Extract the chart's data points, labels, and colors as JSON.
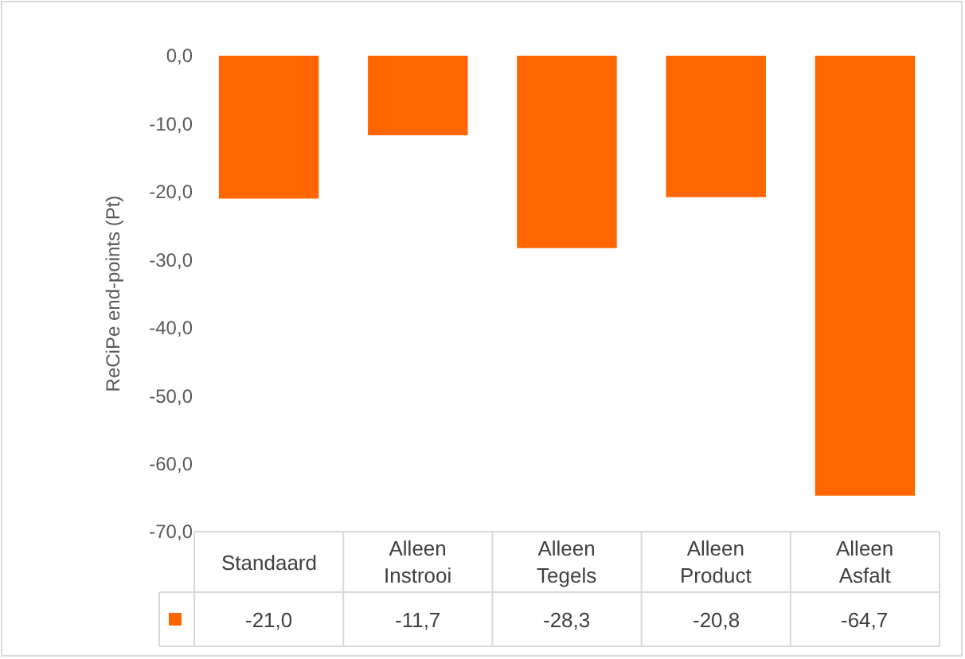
{
  "chart_data": {
    "type": "bar",
    "ylabel": "ReCiPe end-points (Pt)",
    "categories": [
      "Standaard",
      "Alleen Instrooi",
      "Alleen Tegels",
      "Alleen Product",
      "Alleen Asfalt"
    ],
    "series": [
      {
        "color": "#ff6600",
        "values": [
          -21.0,
          -11.7,
          -28.3,
          -20.8,
          -64.7
        ],
        "value_labels": [
          "-21,0",
          "-11,7",
          "-28,3",
          "-20,8",
          "-64,7"
        ]
      }
    ],
    "ylim": [
      -70,
      0
    ],
    "yticks": [
      {
        "value": 0,
        "label": "0,0"
      },
      {
        "value": -10,
        "label": "-10,0"
      },
      {
        "value": -20,
        "label": "-20,0"
      },
      {
        "value": -30,
        "label": "-30,0"
      },
      {
        "value": -40,
        "label": "-40,0"
      },
      {
        "value": -50,
        "label": "-50,0"
      },
      {
        "value": -60,
        "label": "-60,0"
      },
      {
        "value": -70,
        "label": "-70,0"
      }
    ],
    "grid": false,
    "legend": false
  }
}
